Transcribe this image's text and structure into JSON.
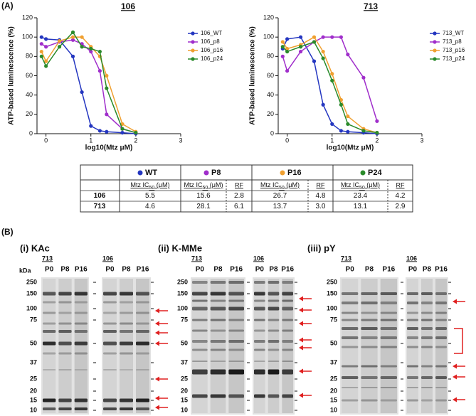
{
  "figure_label_a": "(A)",
  "chart_data": [
    {
      "type": "line",
      "title": "106",
      "ylabel": "ATP-based luminescence (%)",
      "xlabel": "log10(Mtz μM)",
      "x": [
        -0.1,
        0,
        0.3,
        0.6,
        0.8,
        1,
        1.2,
        1.35,
        1.7,
        2
      ],
      "xlim": [
        -0.2,
        3
      ],
      "ylim": [
        0,
        120
      ],
      "xticks": [
        0,
        1,
        2,
        3
      ],
      "yticks": [
        0,
        20,
        40,
        60,
        80,
        100,
        120
      ],
      "markers": true,
      "series": [
        {
          "name": "106_WT",
          "color": "#2436c0",
          "values": [
            100,
            98,
            97,
            80,
            43,
            8,
            3,
            2,
            1,
            0
          ]
        },
        {
          "name": "106_p8",
          "color": "#a02ecb",
          "values": [
            93,
            90,
            95,
            97,
            93,
            85,
            65,
            20,
            5,
            1
          ]
        },
        {
          "name": "106_p16",
          "color": "#f0a030",
          "values": [
            85,
            75,
            96,
            100,
            100,
            90,
            80,
            60,
            10,
            2
          ]
        },
        {
          "name": "106_p24",
          "color": "#2a8a2a",
          "values": [
            80,
            70,
            90,
            105,
            90,
            88,
            85,
            47,
            5,
            1
          ]
        }
      ]
    },
    {
      "type": "line",
      "title": "713",
      "ylabel": "ATP-based luminescence (%)",
      "xlabel": "log10(Mtz μM)",
      "x": [
        -0.1,
        0,
        0.3,
        0.6,
        0.8,
        1,
        1.2,
        1.35,
        1.7,
        2
      ],
      "xlim": [
        -0.2,
        3
      ],
      "ylim": [
        0,
        120
      ],
      "xticks": [
        0,
        1,
        2,
        3
      ],
      "yticks": [
        0,
        20,
        40,
        60,
        80,
        100,
        120
      ],
      "markers": true,
      "series": [
        {
          "name": "713_WT",
          "color": "#2436c0",
          "values": [
            88,
            98,
            100,
            75,
            30,
            10,
            3,
            2,
            1,
            0
          ]
        },
        {
          "name": "713_p8",
          "color": "#a02ecb",
          "values": [
            80,
            65,
            85,
            95,
            100,
            100,
            100,
            82,
            58,
            13
          ]
        },
        {
          "name": "713_p16",
          "color": "#f0a030",
          "values": [
            95,
            88,
            92,
            100,
            85,
            62,
            35,
            18,
            5,
            1
          ]
        },
        {
          "name": "713_p24",
          "color": "#2a8a2a",
          "values": [
            90,
            85,
            90,
            95,
            78,
            55,
            30,
            10,
            3,
            1
          ]
        }
      ]
    }
  ],
  "table": {
    "groups": [
      {
        "name": "WT",
        "color": "#2436c0"
      },
      {
        "name": "P8",
        "color": "#a02ecb"
      },
      {
        "name": "P16",
        "color": "#f0a030"
      },
      {
        "name": "P24",
        "color": "#2a8a2a"
      }
    ],
    "ic50": {
      "prefix": "Mtz IC",
      "sub": "50",
      "suffix": " (μM)"
    },
    "rf": "RF",
    "rows": [
      {
        "label": "106",
        "cells": [
          "5.5",
          "15.6",
          "2.8",
          "26.7",
          "4.8",
          "23.4",
          "4.2"
        ]
      },
      {
        "label": "713",
        "cells": [
          "4.6",
          "28.1",
          "6.1",
          "13.7",
          "3.0",
          "13.1",
          "2.9"
        ]
      }
    ]
  },
  "figure_label_b": "(B)",
  "blots": {
    "kda": "kDa",
    "markers": [
      250,
      150,
      100,
      75,
      50,
      37,
      25,
      20,
      15,
      10
    ],
    "panels": [
      {
        "title": "(i) KAc",
        "groups": [
          {
            "name": "713",
            "lanes": [
              "P0",
              "P8",
              "P16"
            ]
          },
          {
            "name": "106",
            "lanes": [
              "P0",
              "P8",
              "P16"
            ]
          }
        ]
      },
      {
        "title": "(ii) K-MMe",
        "groups": [
          {
            "name": "713",
            "lanes": [
              "P0",
              "P8",
              "P16"
            ]
          },
          {
            "name": "106",
            "lanes": [
              "P0",
              "P8",
              "P16"
            ]
          }
        ]
      },
      {
        "title": "(iii) pY",
        "groups": [
          {
            "name": "713",
            "lanes": [
              "P0",
              "P8",
              "P16"
            ]
          },
          {
            "name": "106",
            "lanes": [
              "P0",
              "P8",
              "P16"
            ]
          }
        ]
      }
    ]
  }
}
